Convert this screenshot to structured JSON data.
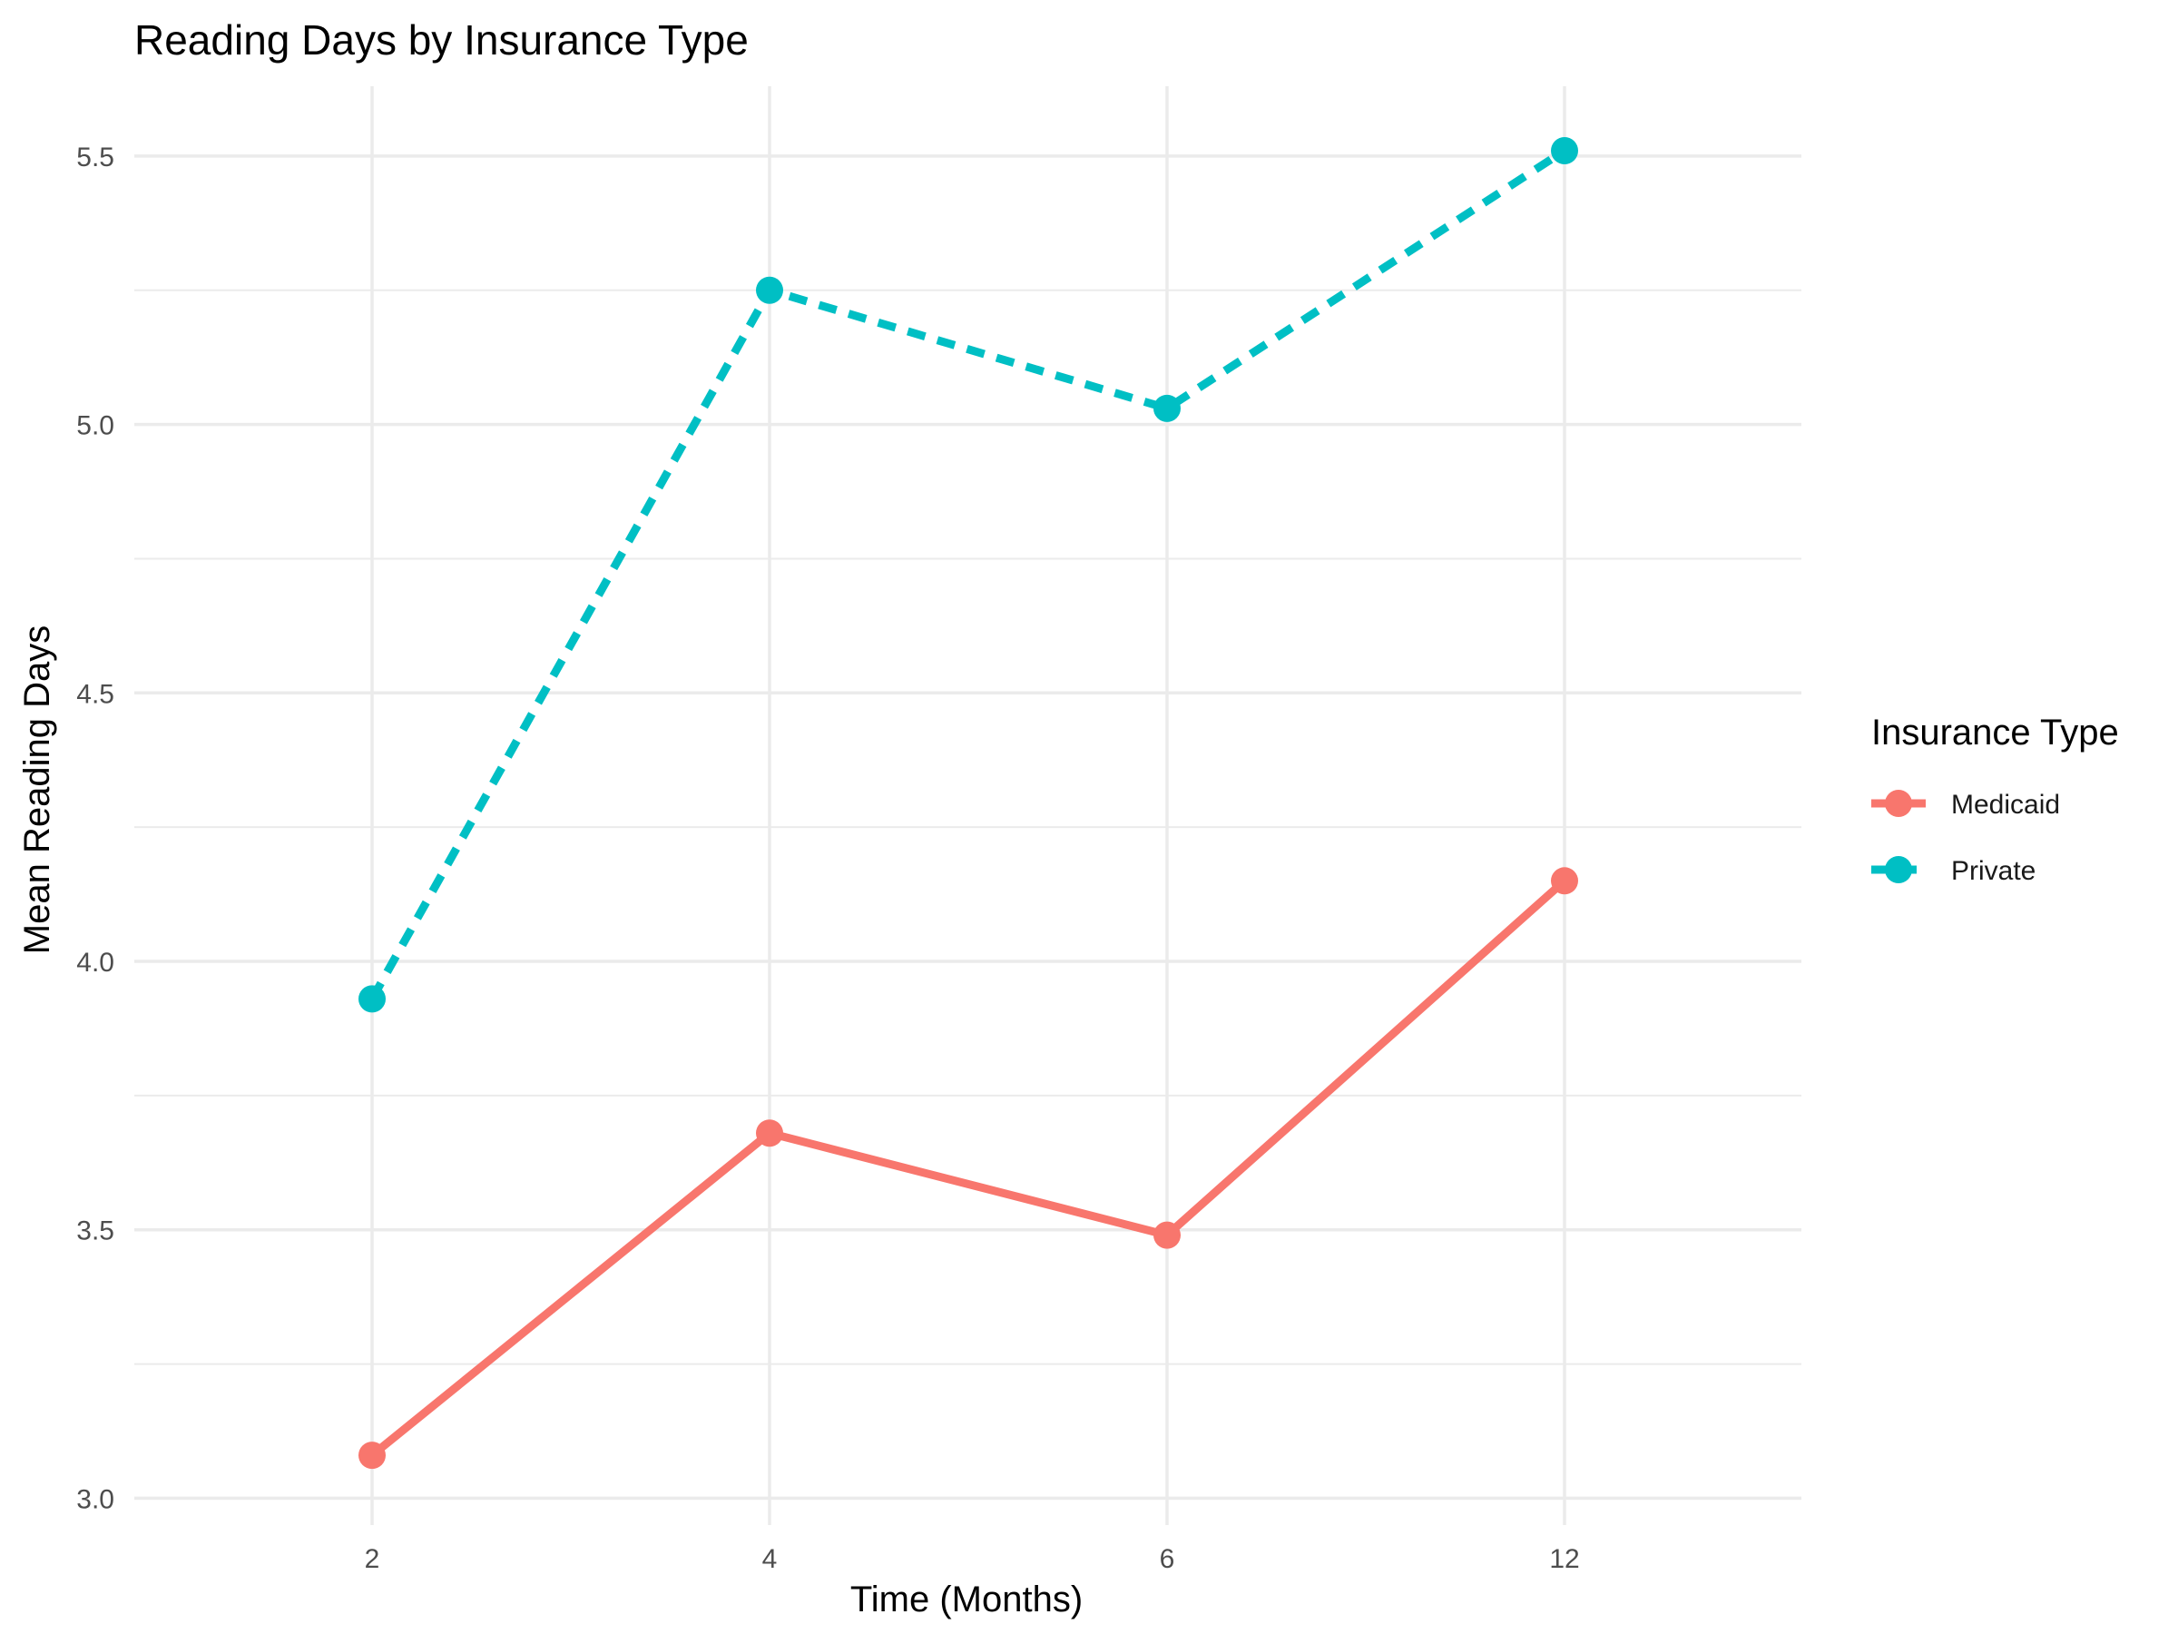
{
  "chart_data": {
    "type": "line",
    "title": "Reading Days by Insurance Type",
    "xlabel": "Time (Months)",
    "ylabel": "Mean Reading Days",
    "categories": [
      "2",
      "4",
      "6",
      "12"
    ],
    "ylim": [
      2.95,
      5.63
    ],
    "y_ticks": [
      "3.0",
      "3.5",
      "4.0",
      "4.5",
      "5.0",
      "5.5"
    ],
    "grid": true,
    "legend": {
      "title": "Insurance Type",
      "position": "right"
    },
    "series": [
      {
        "name": "Medicaid",
        "values": [
          3.08,
          3.68,
          3.49,
          4.15
        ],
        "color": "#F8766D",
        "line_style": "solid"
      },
      {
        "name": "Private",
        "values": [
          3.93,
          5.25,
          5.03,
          5.51
        ],
        "color": "#00BFC4",
        "line_style": "dashed"
      }
    ]
  }
}
